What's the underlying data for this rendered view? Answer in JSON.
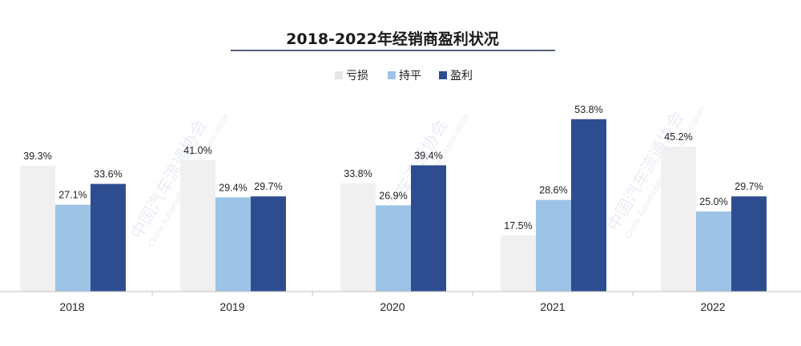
{
  "chart_data": {
    "type": "bar",
    "title": "2018-2022年经销商盈利状况",
    "categories": [
      "2018",
      "2019",
      "2020",
      "2021",
      "2022"
    ],
    "series": [
      {
        "name": "亏损",
        "values": [
          39.3,
          41.0,
          33.8,
          17.5,
          45.2
        ],
        "labels": [
          "39.3%",
          "41.0%",
          "33.8%",
          "17.5%",
          "45.2%"
        ],
        "color": "#f0f0f0"
      },
      {
        "name": "持平",
        "values": [
          27.1,
          29.4,
          26.9,
          28.6,
          25.0
        ],
        "labels": [
          "27.1%",
          "29.4%",
          "26.9%",
          "28.6%",
          "25.0%"
        ],
        "color": "#9dc3e6"
      },
      {
        "name": "盈利",
        "values": [
          33.6,
          29.7,
          39.4,
          53.8,
          29.7
        ],
        "labels": [
          "33.6%",
          "29.7%",
          "39.4%",
          "53.8%",
          "29.7%"
        ],
        "color": "#2e4d91"
      }
    ],
    "ylim": [
      0,
      60
    ],
    "legend": "top-center",
    "grid": false,
    "xlabel": "",
    "ylabel": ""
  },
  "watermark": {
    "name": "中国汽车流通协会",
    "english": "China Automobile Dealers Association"
  }
}
